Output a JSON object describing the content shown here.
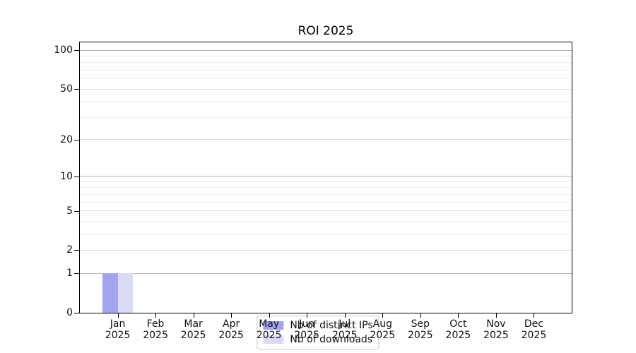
{
  "chart_data": {
    "type": "bar",
    "title": "ROI 2025",
    "categories": [
      "Jan 2025",
      "Feb 2025",
      "Mar 2025",
      "Apr 2025",
      "May 2025",
      "Jun 2025",
      "Jul 2025",
      "Aug 2025",
      "Sep 2025",
      "Oct 2025",
      "Nov 2025",
      "Dec 2025"
    ],
    "series": [
      {
        "name": "Nb of distinct IPs",
        "color": "#a3a3f0",
        "values": [
          1,
          0,
          0,
          0,
          0,
          0,
          0,
          0,
          0,
          0,
          0,
          0
        ]
      },
      {
        "name": "Nb of downloads",
        "color": "#dbdbf8",
        "values": [
          1,
          0,
          0,
          0,
          0,
          0,
          0,
          0,
          0,
          0,
          0,
          0
        ]
      }
    ],
    "xlabel": "",
    "ylabel": "",
    "y_scale": "log1p",
    "ylim": [
      0,
      100
    ],
    "y_ticks": [
      0,
      1,
      2,
      5,
      10,
      20,
      50,
      100
    ],
    "y_gridlines": {
      "strong": [
        1,
        10,
        100
      ],
      "medium": [
        2,
        5,
        20,
        50
      ],
      "faint": [
        3,
        4,
        6,
        7,
        8,
        9,
        30,
        40,
        60,
        70,
        80,
        90
      ]
    },
    "grid": true,
    "legend_position": "lower center",
    "legend": [
      "Nb of distinct IPs",
      "Nb of downloads"
    ]
  },
  "colors": {
    "axis": "#000000",
    "grid_strong": "#b5b5b5",
    "grid_medium": "#dbdbdb",
    "grid_faint": "#efefef",
    "legend_border": "#cccccc",
    "series_1": "#a3a3f0",
    "series_2": "#dbdbf8"
  }
}
